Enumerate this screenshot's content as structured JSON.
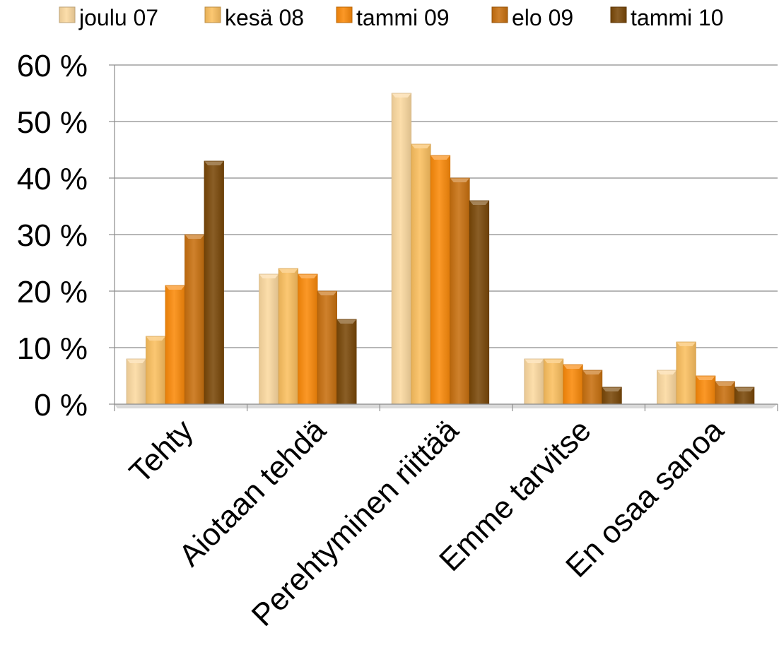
{
  "chart_data": {
    "type": "bar",
    "title": "",
    "xlabel": "",
    "ylabel": "",
    "categories": [
      "Tehty",
      "Aiotaan tehdä",
      "Perehtyminen riittää",
      "Emme tarvitse",
      "En osaa sanoa"
    ],
    "series": [
      {
        "name": "joulu 07",
        "color": "#FCD9A0",
        "values": [
          8,
          23,
          55,
          8,
          6
        ]
      },
      {
        "name": "kesä 08",
        "color": "#FBBF5F",
        "values": [
          12,
          24,
          46,
          8,
          11
        ]
      },
      {
        "name": "tammi 09",
        "color": "#FB8A0A",
        "values": [
          21,
          23,
          44,
          7,
          5
        ]
      },
      {
        "name": "elo 09",
        "color": "#C8700F",
        "values": [
          30,
          20,
          40,
          6,
          4
        ]
      },
      {
        "name": "tammi 10",
        "color": "#7A4808",
        "values": [
          43,
          15,
          36,
          3,
          3
        ]
      }
    ],
    "ylim": [
      0,
      60
    ],
    "yticks": [
      0,
      10,
      20,
      30,
      40,
      50,
      60
    ],
    "ytick_labels": [
      "0 %",
      "10 %",
      "20 %",
      "30 %",
      "40 %",
      "50 %",
      "60 %"
    ],
    "grid": true,
    "legend": "top"
  }
}
